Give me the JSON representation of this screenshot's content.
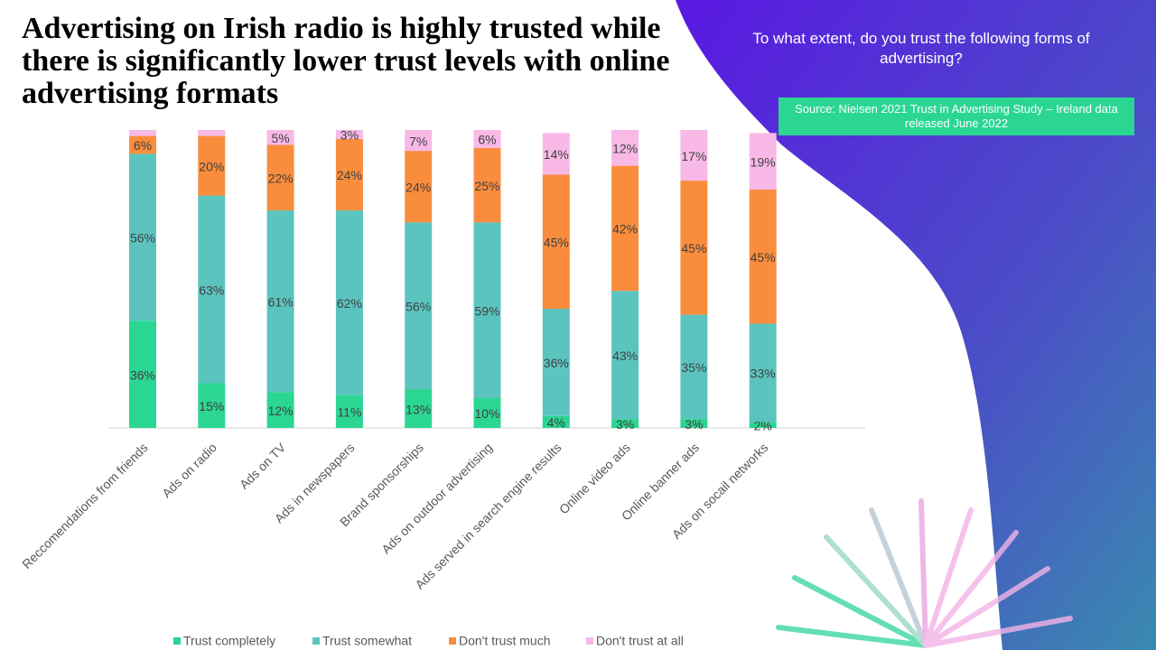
{
  "chart_data": {
    "type": "stacked_bar",
    "title": "Advertising on Irish radio is highly trusted while there is significantly lower trust levels with online advertising formats",
    "subtitle": "To what extent, do you trust the following forms of advertising?",
    "source": "Source: Nielsen 2021 Trust in Advertising Study – Ireland data released June 2022",
    "categories": [
      "Reccomendations from friends",
      "Ads on radio",
      "Ads on TV",
      "Ads in newspapers",
      "Brand sponsorships",
      "Ads on outdoor advertising",
      "Ads served in search engine results",
      "Online video ads",
      "Online banner ads",
      "Ads on socail networks"
    ],
    "ylim": [
      0,
      100
    ],
    "series": [
      {
        "name": "Trust completely",
        "color": "#2bd693",
        "values": [
          36,
          15,
          12,
          11,
          13,
          10,
          4,
          3,
          3,
          2
        ],
        "value_labels": [
          "36%",
          "15%",
          "12%",
          "11%",
          "13%",
          "10%",
          "4%",
          "3%",
          "3%",
          "2%"
        ]
      },
      {
        "name": "Trust somewhat",
        "color": "#5bc4bf",
        "values": [
          56,
          63,
          61,
          62,
          56,
          59,
          36,
          43,
          35,
          33
        ],
        "value_labels": [
          "56%",
          "63%",
          "61%",
          "62%",
          "56%",
          "59%",
          "36%",
          "43%",
          "35%",
          "33%"
        ]
      },
      {
        "name": "Don't trust much",
        "color": "#f98d3d",
        "values": [
          6,
          20,
          22,
          24,
          24,
          25,
          45,
          42,
          45,
          45
        ],
        "value_labels": [
          "6%",
          "20%",
          "22%",
          "24%",
          "24%",
          "25%",
          "45%",
          "42%",
          "45%",
          "45%"
        ]
      },
      {
        "name": "Don't trust at all",
        "color": "#f8b9e6",
        "values": [
          2,
          2,
          5,
          3,
          7,
          6,
          14,
          12,
          17,
          19
        ],
        "value_labels": [
          null,
          null,
          "5%",
          "3%",
          "7%",
          "6%",
          "14%",
          "12%",
          "17%",
          "19%"
        ]
      }
    ]
  }
}
